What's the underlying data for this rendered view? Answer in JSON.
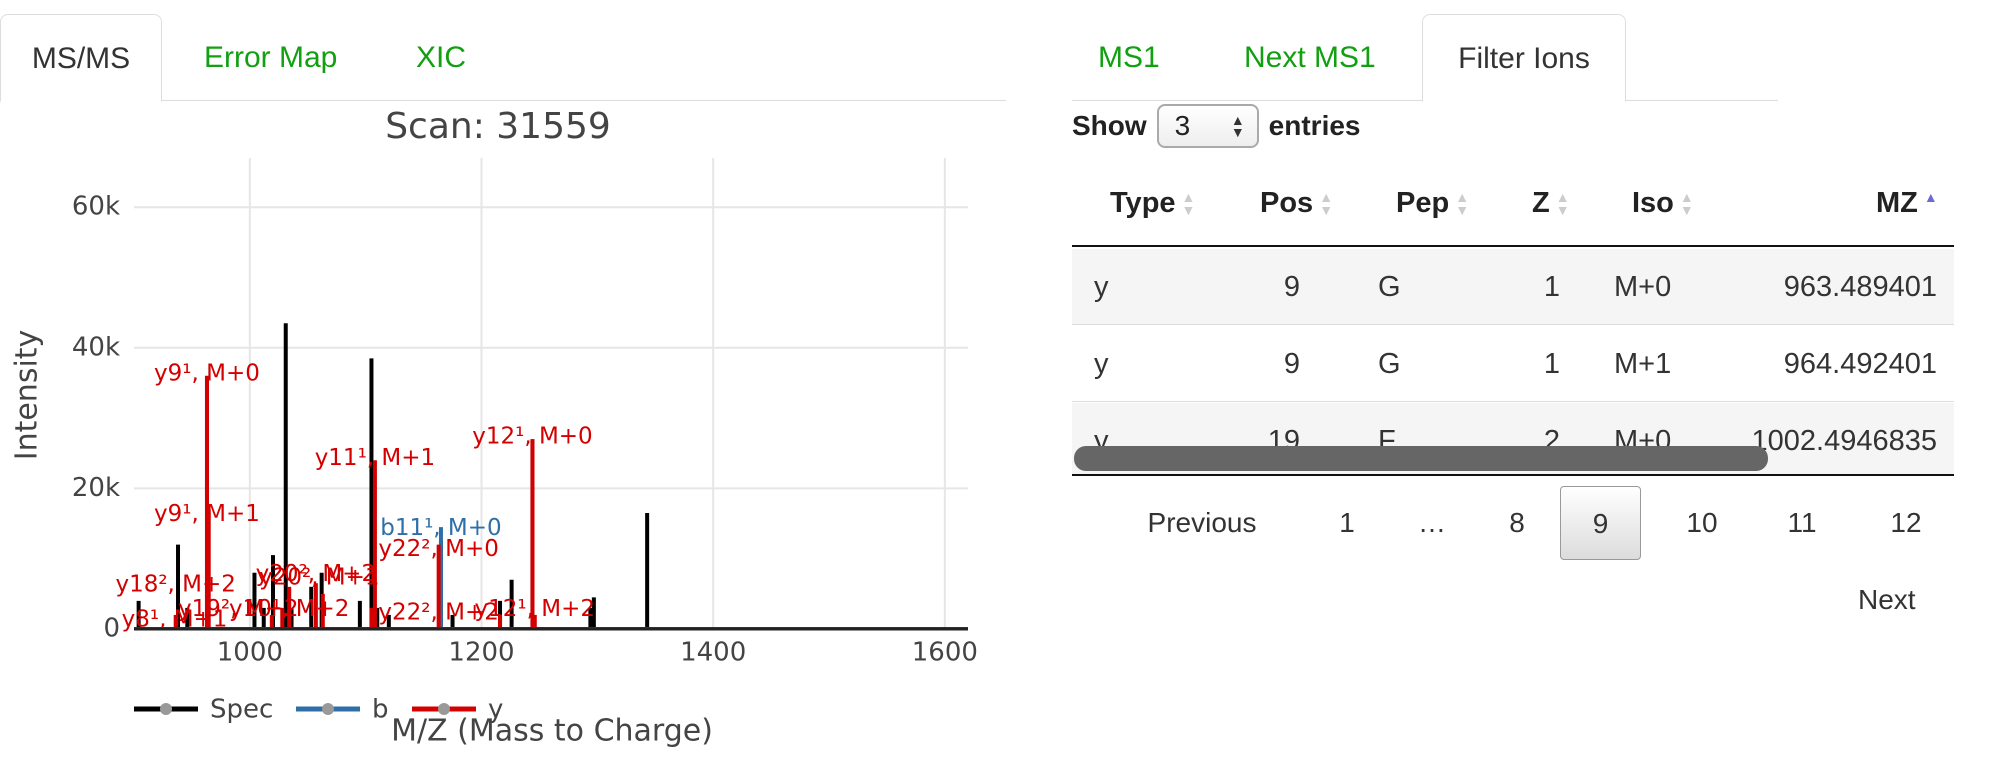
{
  "left_tabs": [
    {
      "label": "MS/MS",
      "active": true
    },
    {
      "label": "Error Map",
      "active": false
    },
    {
      "label": "XIC",
      "active": false
    }
  ],
  "right_tabs": [
    {
      "label": "MS1",
      "active": false
    },
    {
      "label": "Next MS1",
      "active": false
    },
    {
      "label": "Filter Ions",
      "active": true
    }
  ],
  "colors": {
    "tab_link": "#11a011",
    "spec": "#000000",
    "b": "#2f6fa8",
    "y": "#d40000",
    "sort_active": "#6b6bd6"
  },
  "chart_data": {
    "type": "bar",
    "title": "Scan: 31559",
    "xlabel": "M/Z (Mass to Charge)",
    "ylabel": "Intensity",
    "xlim": [
      900,
      1620
    ],
    "ylim": [
      0,
      67000
    ],
    "xticks": [
      1000,
      1200,
      1400,
      1600
    ],
    "xtick_labels": [
      "1000",
      "1200",
      "1400",
      "1600"
    ],
    "yticks": [
      0,
      20000,
      40000,
      60000
    ],
    "ytick_labels": [
      "0",
      "20k",
      "40k",
      "60k"
    ],
    "grid": true,
    "legend_position": "bottom",
    "series": [
      {
        "name": "Spec",
        "x": [
          904,
          938,
          946,
          963,
          1004,
          1012,
          1020,
          1031,
          1036,
          1053,
          1062,
          1095,
          1105,
          1110,
          1120,
          1165,
          1175,
          1216,
          1226,
          1244,
          1294,
          1297,
          1343
        ],
        "y": [
          4000,
          12000,
          3000,
          36000,
          8000,
          3000,
          10500,
          43500,
          3000,
          6000,
          8000,
          4000,
          38500,
          3000,
          2000,
          12500,
          2000,
          4000,
          7000,
          27000,
          3000,
          4500,
          16500
        ]
      },
      {
        "name": "b",
        "x": [
          1165
        ],
        "y": [
          14500
        ]
      },
      {
        "name": "y",
        "x": [
          936,
          963,
          964.5,
          1019,
          1028,
          1034,
          1057,
          1063,
          1105,
          1108,
          1163,
          1216,
          1244,
          1246
        ],
        "y": [
          2000,
          36000,
          17000,
          2000,
          3000,
          6000,
          6500,
          5000,
          3000,
          24000,
          12000,
          2000,
          27000,
          2000
        ]
      }
    ],
    "annotations": [
      {
        "text": "y9¹, M+0",
        "x": 963,
        "y": 36000,
        "series": "y"
      },
      {
        "text": "y9¹, M+1",
        "x": 963,
        "y": 16000,
        "series": "y"
      },
      {
        "text": "y11¹, M+1",
        "x": 1108,
        "y": 24000,
        "series": "y"
      },
      {
        "text": "y12¹, M+0",
        "x": 1244,
        "y": 27000,
        "series": "y"
      },
      {
        "text": "b11¹, M+0",
        "x": 1165,
        "y": 14000,
        "series": "b"
      },
      {
        "text": "y22², M+0",
        "x": 1163,
        "y": 11000,
        "series": "y"
      },
      {
        "text": "y18², M+2",
        "x": 936,
        "y": 6000,
        "series": "y"
      },
      {
        "text": "y20², M+2",
        "x": 1057,
        "y": 7500,
        "series": "y"
      },
      {
        "text": "y20², M+1",
        "x": 1060,
        "y": 7000,
        "series": "y"
      },
      {
        "text": "y19², M+2",
        "x": 990,
        "y": 2500,
        "series": "y"
      },
      {
        "text": "y10¹, M+2",
        "x": 1034,
        "y": 2500,
        "series": "y"
      },
      {
        "text": "y22², M+2",
        "x": 1163,
        "y": 2000,
        "series": "y"
      },
      {
        "text": "y12¹, M+2",
        "x": 1246,
        "y": 2500,
        "series": "y"
      },
      {
        "text": "y8¹, M+1",
        "x": 935,
        "y": 1000,
        "series": "y"
      }
    ]
  },
  "table": {
    "show_label": "Show",
    "entries_label": "entries",
    "page_length": "3",
    "columns": [
      "Type",
      "Pos",
      "Pep",
      "Z",
      "Iso",
      "MZ"
    ],
    "sorted_column": "MZ",
    "rows": [
      [
        "y",
        "9",
        "G",
        "1",
        "M+0",
        "963.489401"
      ],
      [
        "y",
        "9",
        "G",
        "1",
        "M+1",
        "964.492401"
      ],
      [
        "y",
        "19",
        "F",
        "2",
        "M+0",
        "1002.4946835"
      ]
    ]
  },
  "pagination": {
    "previous": "Previous",
    "pages": [
      "1",
      "…",
      "8",
      "9",
      "10",
      "11",
      "12"
    ],
    "current": "9",
    "next": "Next"
  }
}
